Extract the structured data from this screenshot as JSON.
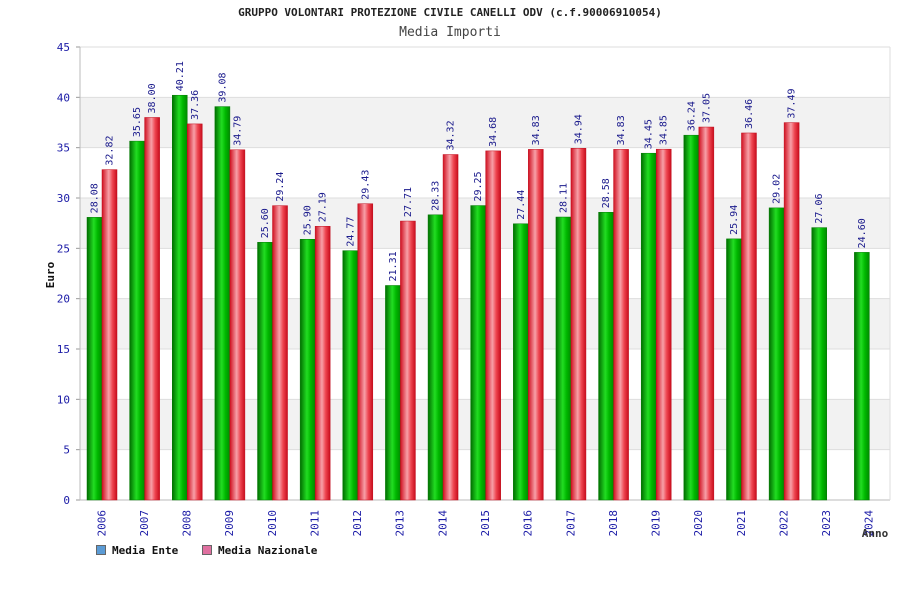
{
  "chart_data": {
    "type": "bar",
    "title": "GRUPPO VOLONTARI PROTEZIONE CIVILE CANELLI ODV (c.f.90006910054)",
    "subtitle": "Media Importi",
    "ylabel": "Euro",
    "xlabel": "Anno",
    "ylim": [
      0,
      45
    ],
    "yticks": [
      0,
      5,
      10,
      15,
      20,
      25,
      30,
      35,
      40,
      45
    ],
    "grid": true,
    "legend_position": "bottom-left",
    "categories": [
      "2006",
      "2007",
      "2008",
      "2009",
      "2010",
      "2011",
      "2012",
      "2013",
      "2014",
      "2015",
      "2016",
      "2017",
      "2018",
      "2019",
      "2020",
      "2021",
      "2022",
      "2023",
      "2024"
    ],
    "series": [
      {
        "name": "Media Ente",
        "color": "#00b300",
        "legend_color": "#5b9bd5",
        "values": [
          28.08,
          35.65,
          40.21,
          39.08,
          25.6,
          25.9,
          24.77,
          21.31,
          28.33,
          29.25,
          27.44,
          28.11,
          28.58,
          34.45,
          36.24,
          25.94,
          29.02,
          27.06,
          24.6
        ],
        "labels": [
          "28.08",
          "35.65",
          "40.21",
          "39.08",
          "25.60",
          "25.90",
          "24.77",
          "21.31",
          "28.33",
          "29.25",
          "27.44",
          "28.11",
          "28.58",
          "34.45",
          "36.24",
          "25.94",
          "29.02",
          "27.06",
          "24.60"
        ]
      },
      {
        "name": "Media Nazionale",
        "color": "#e8303a",
        "legend_color": "#e070a0",
        "values": [
          32.82,
          38.0,
          37.36,
          34.79,
          29.24,
          27.19,
          29.43,
          27.71,
          34.32,
          34.68,
          34.83,
          34.94,
          34.83,
          34.85,
          37.05,
          36.46,
          37.49,
          null,
          null
        ],
        "labels": [
          "32.82",
          "38.00",
          "37.36",
          "34.79",
          "29.24",
          "27.19",
          "29.43",
          "27.71",
          "34.32",
          "34.68",
          "34.83",
          "34.94",
          "34.83",
          "34.85",
          "37.05",
          "36.46",
          "37.49",
          null,
          null
        ]
      }
    ]
  }
}
